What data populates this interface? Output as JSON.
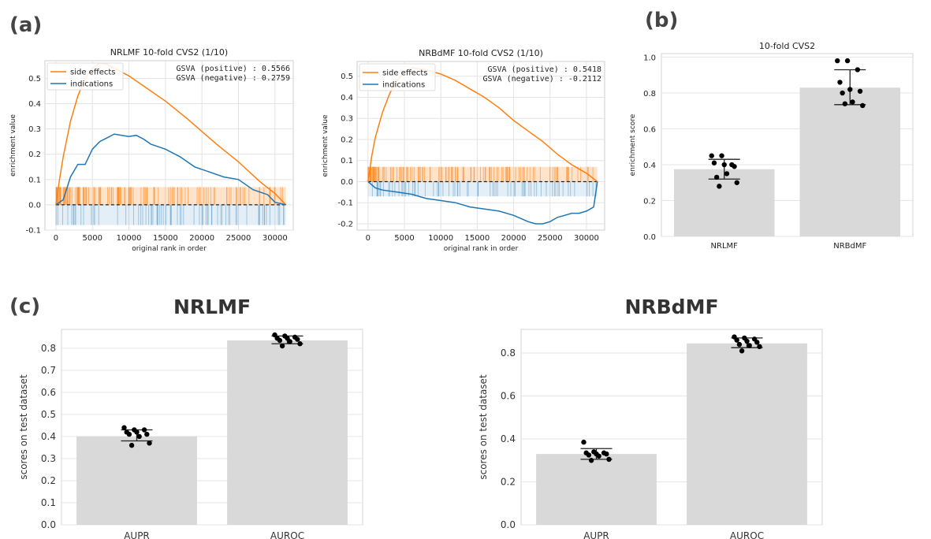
{
  "panel_labels": {
    "a": "(a)",
    "b": "(b)",
    "c": "(c)"
  },
  "chart_data": [
    {
      "id": "a1",
      "type": "line",
      "title": "NRLMF 10-fold CVS2 (1/10)",
      "xlabel": "original rank in order",
      "ylabel": "enrichment value",
      "xlim": [
        -1500,
        32500
      ],
      "ylim": [
        -0.1,
        0.57
      ],
      "xticks": [
        0,
        5000,
        10000,
        15000,
        20000,
        25000,
        30000
      ],
      "yticks": [
        -0.1,
        0.0,
        0.1,
        0.2,
        0.3,
        0.4,
        0.5
      ],
      "grid": true,
      "legend_position": "top-left",
      "annotations": [
        "GSVA (positive) : 0.5566",
        "GSVA (negative) : 0.2759"
      ],
      "series": [
        {
          "name": "side effects",
          "color": "#ff7f0e",
          "x": [
            0,
            500,
            1000,
            2000,
            3000,
            4000,
            5000,
            6000,
            7000,
            8000,
            10000,
            12000,
            15000,
            18000,
            20000,
            22000,
            25000,
            28000,
            30000,
            31500
          ],
          "y": [
            0.0,
            0.1,
            0.19,
            0.33,
            0.43,
            0.5,
            0.54,
            0.56,
            0.556,
            0.54,
            0.51,
            0.47,
            0.41,
            0.34,
            0.29,
            0.24,
            0.17,
            0.09,
            0.045,
            0.0
          ]
        },
        {
          "name": "indications",
          "color": "#1f77b4",
          "x": [
            0,
            1000,
            2000,
            3000,
            4000,
            5000,
            6000,
            7000,
            8000,
            9000,
            10000,
            11000,
            12000,
            13000,
            15000,
            17000,
            19000,
            21000,
            23000,
            25000,
            27000,
            29000,
            30000,
            31500
          ],
          "y": [
            0.0,
            0.02,
            0.11,
            0.16,
            0.16,
            0.22,
            0.25,
            0.265,
            0.28,
            0.275,
            0.27,
            0.275,
            0.26,
            0.24,
            0.22,
            0.19,
            0.15,
            0.13,
            0.11,
            0.1,
            0.06,
            0.04,
            0.01,
            0.0
          ]
        }
      ]
    },
    {
      "id": "a2",
      "type": "line",
      "title": "NRBdMF 10-fold CVS2 (1/10)",
      "xlabel": "original rank in order",
      "ylabel": "enrichment value",
      "xlim": [
        -1500,
        32500
      ],
      "ylim": [
        -0.23,
        0.57
      ],
      "xticks": [
        0,
        5000,
        10000,
        15000,
        20000,
        25000,
        30000
      ],
      "yticks": [
        -0.2,
        -0.1,
        0.0,
        0.1,
        0.2,
        0.3,
        0.4,
        0.5
      ],
      "grid": true,
      "legend_position": "top-left",
      "annotations": [
        "GSVA (positive) : 0.5418",
        "GSVA (negative) : -0.2112"
      ],
      "series": [
        {
          "name": "side effects",
          "color": "#ff7f0e",
          "x": [
            0,
            500,
            1000,
            2000,
            3000,
            4000,
            5000,
            6000,
            8000,
            10000,
            12000,
            14000,
            16000,
            18000,
            20000,
            22000,
            24000,
            26000,
            28000,
            30000,
            31500
          ],
          "y": [
            0.0,
            0.12,
            0.21,
            0.33,
            0.42,
            0.48,
            0.52,
            0.54,
            0.53,
            0.51,
            0.48,
            0.44,
            0.4,
            0.35,
            0.29,
            0.24,
            0.19,
            0.13,
            0.08,
            0.04,
            0.0
          ]
        },
        {
          "name": "indications",
          "color": "#1f77b4",
          "x": [
            0,
            1000,
            2000,
            4000,
            6000,
            8000,
            10000,
            12000,
            14000,
            16000,
            18000,
            20000,
            22000,
            23000,
            24000,
            25000,
            26000,
            27000,
            28000,
            29000,
            30000,
            31000,
            31500
          ],
          "y": [
            0.0,
            -0.03,
            -0.04,
            -0.05,
            -0.06,
            -0.08,
            -0.09,
            -0.1,
            -0.12,
            -0.13,
            -0.14,
            -0.16,
            -0.19,
            -0.2,
            -0.2,
            -0.19,
            -0.17,
            -0.16,
            -0.15,
            -0.15,
            -0.14,
            -0.12,
            0.0
          ]
        }
      ]
    },
    {
      "id": "b",
      "type": "bar",
      "title": "10-fold CVS2",
      "categories": [
        "NRLMF",
        "NRBdMF"
      ],
      "values": [
        0.375,
        0.83
      ],
      "error": [
        [
          0.32,
          0.43
        ],
        [
          0.735,
          0.93
        ]
      ],
      "points": [
        [
          0.45,
          0.45,
          0.4,
          0.41,
          0.4,
          0.39,
          0.33,
          0.35,
          0.3,
          0.28
        ],
        [
          0.98,
          0.98,
          0.93,
          0.86,
          0.82,
          0.81,
          0.8,
          0.75,
          0.73,
          0.74
        ]
      ],
      "xlabel": "",
      "ylabel": "enrichment score",
      "ylim": [
        0,
        1.02
      ],
      "yticks": [
        0.0,
        0.2,
        0.4,
        0.6,
        0.8,
        1.0
      ],
      "bar_color": "#d9d9d9",
      "grid": true
    },
    {
      "id": "c1",
      "type": "bar",
      "title": "NRLMF",
      "categories": [
        "AUPR",
        "AUROC"
      ],
      "values": [
        0.4,
        0.835
      ],
      "error": [
        [
          0.38,
          0.43
        ],
        [
          0.82,
          0.855
        ]
      ],
      "points": [
        [
          0.44,
          0.43,
          0.43,
          0.42,
          0.42,
          0.41,
          0.41,
          0.4,
          0.37,
          0.36
        ],
        [
          0.86,
          0.855,
          0.85,
          0.845,
          0.845,
          0.84,
          0.835,
          0.83,
          0.82,
          0.81
        ]
      ],
      "xlabel": "",
      "ylabel": "scores on test dataset",
      "ylim": [
        0,
        0.885
      ],
      "yticks": [
        0.0,
        0.1,
        0.2,
        0.3,
        0.4,
        0.5,
        0.6,
        0.7,
        0.8
      ],
      "bar_color": "#d9d9d9",
      "grid": true
    },
    {
      "id": "c2",
      "type": "bar",
      "title": "NRBdMF",
      "categories": [
        "AUPR",
        "AUROC"
      ],
      "values": [
        0.33,
        0.845
      ],
      "error": [
        [
          0.305,
          0.355
        ],
        [
          0.825,
          0.87
        ]
      ],
      "points": [
        [
          0.385,
          0.34,
          0.335,
          0.335,
          0.33,
          0.33,
          0.325,
          0.32,
          0.305,
          0.3
        ],
        [
          0.875,
          0.87,
          0.865,
          0.86,
          0.855,
          0.85,
          0.84,
          0.835,
          0.83,
          0.81
        ]
      ],
      "xlabel": "",
      "ylabel": "scores on test dataset",
      "ylim": [
        0,
        0.91
      ],
      "yticks": [
        0.0,
        0.2,
        0.4,
        0.6,
        0.8
      ],
      "bar_color": "#d9d9d9",
      "grid": true
    }
  ]
}
